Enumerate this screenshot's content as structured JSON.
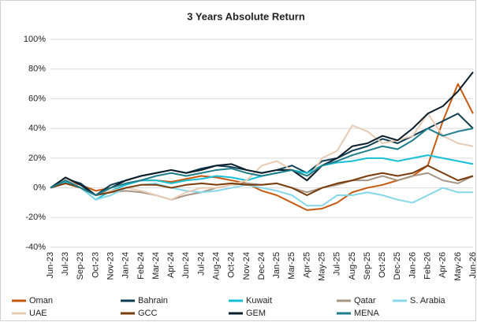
{
  "chart_data": {
    "type": "line",
    "title": "3 Years Absolute Return",
    "categories": [
      "Jun-23",
      "Jul-23",
      "Sep-23",
      "Oct-23",
      "Nov-23",
      "Jan-24",
      "Feb-24",
      "Mar-24",
      "Apr-24",
      "Jun-24",
      "Jul-24",
      "Aug-24",
      "Oct-24",
      "Nov-24",
      "Dec-24",
      "Jan-25",
      "Mar-25",
      "Apr-25",
      "May-25",
      "Jul-25",
      "Aug-25",
      "Sep-25",
      "Oct-25",
      "Dec-25",
      "Jan-26",
      "Feb-26",
      "Apr-26",
      "May-26",
      "Jun-26"
    ],
    "ylim": [
      -40,
      100
    ],
    "yticks": [
      {
        "value": -40,
        "label": "-40%"
      },
      {
        "value": -20,
        "label": "-20%"
      },
      {
        "value": 0,
        "label": "0%"
      },
      {
        "value": 20,
        "label": "20%"
      },
      {
        "value": 40,
        "label": "40%"
      },
      {
        "value": 60,
        "label": "60%"
      },
      {
        "value": 80,
        "label": "80%"
      },
      {
        "value": 100,
        "label": "100%"
      }
    ],
    "grid": true,
    "series": [
      {
        "name": "Oman",
        "color": "#c55a11",
        "values": [
          0,
          5,
          2,
          -2,
          0,
          3,
          5,
          5,
          4,
          6,
          8,
          7,
          5,
          3,
          -2,
          -5,
          -10,
          -15,
          -14,
          -10,
          -3,
          0,
          2,
          5,
          8,
          15,
          45,
          70,
          50
        ]
      },
      {
        "name": "Bahrain",
        "color": "#0f3d52",
        "values": [
          0,
          6,
          3,
          -5,
          2,
          5,
          8,
          10,
          12,
          10,
          13,
          15,
          14,
          12,
          10,
          12,
          15,
          10,
          18,
          20,
          25,
          28,
          33,
          30,
          35,
          40,
          45,
          50,
          40
        ]
      },
      {
        "name": "Kuwait",
        "color": "#17c0d6",
        "values": [
          0,
          4,
          0,
          -8,
          -2,
          2,
          5,
          5,
          3,
          5,
          6,
          8,
          7,
          5,
          8,
          10,
          12,
          10,
          15,
          17,
          18,
          20,
          20,
          18,
          20,
          22,
          20,
          18,
          16
        ]
      },
      {
        "name": "Qatar",
        "color": "#a89584",
        "values": [
          0,
          5,
          0,
          -5,
          -3,
          -2,
          -3,
          -5,
          -8,
          -5,
          -3,
          0,
          2,
          3,
          2,
          3,
          0,
          -3,
          0,
          2,
          5,
          5,
          8,
          5,
          8,
          10,
          5,
          3,
          8
        ]
      },
      {
        "name": "S. Arabia",
        "color": "#86d7ea",
        "values": [
          0,
          3,
          0,
          -8,
          -5,
          0,
          2,
          3,
          0,
          -2,
          -3,
          -2,
          0,
          2,
          0,
          -2,
          -5,
          -12,
          -12,
          -5,
          -5,
          -3,
          -5,
          -8,
          -10,
          -5,
          0,
          -3,
          -3
        ]
      },
      {
        "name": "UAE",
        "color": "#e6cbb5",
        "values": [
          0,
          6,
          0,
          -5,
          -2,
          0,
          -2,
          -5,
          -8,
          -3,
          0,
          0,
          2,
          5,
          15,
          18,
          12,
          5,
          20,
          25,
          42,
          38,
          30,
          32,
          35,
          50,
          35,
          30,
          28
        ]
      },
      {
        "name": "GCC",
        "color": "#7a3b0a",
        "values": [
          0,
          3,
          0,
          -5,
          -3,
          0,
          2,
          2,
          0,
          2,
          3,
          2,
          3,
          2,
          2,
          3,
          0,
          -5,
          0,
          3,
          5,
          8,
          10,
          8,
          10,
          15,
          10,
          5,
          8
        ]
      },
      {
        "name": "GEM",
        "color": "#0a1e2c",
        "values": [
          0,
          7,
          2,
          -5,
          0,
          5,
          8,
          10,
          12,
          10,
          12,
          15,
          16,
          12,
          10,
          12,
          12,
          5,
          15,
          20,
          28,
          30,
          35,
          32,
          40,
          50,
          55,
          65,
          78
        ]
      },
      {
        "name": "MENA",
        "color": "#1d7e8c",
        "values": [
          0,
          5,
          0,
          -5,
          0,
          3,
          5,
          8,
          10,
          8,
          10,
          12,
          13,
          10,
          8,
          10,
          12,
          8,
          15,
          18,
          22,
          25,
          28,
          26,
          32,
          40,
          35,
          38,
          40
        ]
      }
    ]
  }
}
